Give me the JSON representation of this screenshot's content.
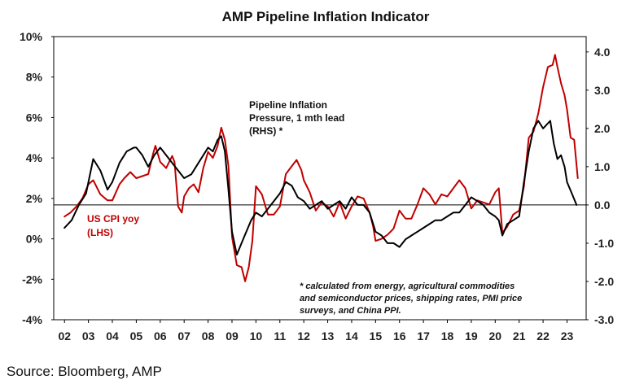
{
  "chart_data": {
    "type": "line",
    "title": "AMP Pipeline Inflation Indicator",
    "source": "Source: Bloomberg, AMP",
    "x_ticks": [
      "02",
      "03",
      "04",
      "05",
      "06",
      "07",
      "08",
      "09",
      "10",
      "11",
      "12",
      "13",
      "14",
      "15",
      "16",
      "17",
      "18",
      "19",
      "20",
      "21",
      "22",
      "23"
    ],
    "y_left": {
      "ticks": [
        "10%",
        "8%",
        "6%",
        "4%",
        "2%",
        "0%",
        "-2%",
        "-4%"
      ],
      "range": [
        -4,
        10
      ]
    },
    "y_right": {
      "ticks": [
        "4.0",
        "3.0",
        "2.0",
        "1.0",
        "0.0",
        "-1.0",
        "-2.0",
        "-3.0"
      ],
      "range": [
        -3,
        4.4
      ]
    },
    "annotations": {
      "pipeline_label": [
        "Pipeline Inflation",
        "Pressure, 1 mth lead",
        "(RHS) *"
      ],
      "cpi_label": [
        "US CPI yoy",
        "(LHS)"
      ],
      "footnote": [
        "* calculated from energy, agricultural commodities",
        "and semiconductor prices, shipping rates, PMI price",
        "surveys, and China PPI."
      ]
    },
    "series": [
      {
        "name": "US CPI yoy (LHS)",
        "axis": "left",
        "color": "#c00000",
        "x": [
          2002.0,
          2002.25,
          2002.5,
          2002.75,
          2003.0,
          2003.2,
          2003.5,
          2003.8,
          2004.0,
          2004.3,
          2004.5,
          2004.75,
          2005.0,
          2005.25,
          2005.5,
          2005.7,
          2005.8,
          2006.0,
          2006.25,
          2006.5,
          2006.6,
          2006.75,
          2006.9,
          2007.0,
          2007.2,
          2007.4,
          2007.6,
          2007.8,
          2008.0,
          2008.2,
          2008.4,
          2008.55,
          2008.7,
          2008.85,
          2009.0,
          2009.2,
          2009.4,
          2009.55,
          2009.7,
          2009.85,
          2010.0,
          2010.25,
          2010.5,
          2010.75,
          2011.0,
          2011.25,
          2011.5,
          2011.7,
          2011.9,
          2012.0,
          2012.25,
          2012.5,
          2012.75,
          2013.0,
          2013.25,
          2013.5,
          2013.75,
          2014.0,
          2014.25,
          2014.5,
          2014.75,
          2014.9,
          2015.0,
          2015.25,
          2015.5,
          2015.75,
          2016.0,
          2016.25,
          2016.5,
          2016.75,
          2017.0,
          2017.25,
          2017.5,
          2017.75,
          2018.0,
          2018.25,
          2018.5,
          2018.75,
          2019.0,
          2019.25,
          2019.5,
          2019.75,
          2020.0,
          2020.15,
          2020.3,
          2020.5,
          2020.75,
          2021.0,
          2021.2,
          2021.4,
          2021.6,
          2021.8,
          2022.0,
          2022.2,
          2022.4,
          2022.5,
          2022.6,
          2022.75,
          2022.9,
          2023.0,
          2023.15,
          2023.3,
          2023.45
        ],
        "values": [
          1.1,
          1.3,
          1.6,
          2.0,
          2.7,
          2.9,
          2.2,
          1.9,
          1.9,
          2.7,
          3.0,
          3.3,
          3.0,
          3.1,
          3.2,
          4.2,
          4.6,
          3.8,
          3.5,
          4.1,
          3.8,
          1.6,
          1.3,
          2.1,
          2.5,
          2.7,
          2.3,
          3.5,
          4.3,
          4.0,
          4.6,
          5.5,
          4.9,
          3.6,
          0.1,
          -1.3,
          -1.4,
          -2.1,
          -1.4,
          -0.1,
          2.6,
          2.2,
          1.2,
          1.2,
          1.6,
          3.2,
          3.6,
          3.9,
          3.4,
          2.9,
          2.3,
          1.4,
          1.8,
          1.6,
          1.1,
          1.8,
          1.0,
          1.6,
          2.1,
          2.0,
          1.3,
          0.6,
          -0.1,
          0.0,
          0.2,
          0.5,
          1.4,
          1.0,
          1.0,
          1.7,
          2.5,
          2.2,
          1.7,
          2.2,
          2.1,
          2.5,
          2.9,
          2.5,
          1.5,
          1.9,
          1.8,
          1.7,
          2.3,
          2.5,
          0.3,
          0.6,
          1.2,
          1.4,
          2.6,
          5.0,
          5.3,
          6.2,
          7.5,
          8.5,
          8.6,
          9.1,
          8.5,
          7.7,
          7.1,
          6.4,
          5.0,
          4.9,
          3.0
        ]
      },
      {
        "name": "Pipeline Inflation Pressure, 1 mth lead (RHS) *",
        "axis": "right",
        "color": "#000000",
        "x": [
          2002.0,
          2002.3,
          2002.6,
          2002.9,
          2003.2,
          2003.5,
          2003.8,
          2004.0,
          2004.3,
          2004.6,
          2004.9,
          2005.0,
          2005.25,
          2005.5,
          2005.75,
          2006.0,
          2006.25,
          2006.5,
          2006.75,
          2007.0,
          2007.3,
          2007.6,
          2007.8,
          2008.0,
          2008.2,
          2008.4,
          2008.55,
          2008.7,
          2008.85,
          2009.0,
          2009.2,
          2009.4,
          2009.6,
          2009.8,
          2010.0,
          2010.25,
          2010.5,
          2010.75,
          2011.0,
          2011.25,
          2011.5,
          2011.75,
          2012.0,
          2012.25,
          2012.5,
          2012.75,
          2013.0,
          2013.25,
          2013.5,
          2013.75,
          2014.0,
          2014.25,
          2014.5,
          2014.75,
          2015.0,
          2015.25,
          2015.5,
          2015.75,
          2016.0,
          2016.25,
          2016.5,
          2016.75,
          2017.0,
          2017.25,
          2017.5,
          2017.75,
          2018.0,
          2018.25,
          2018.5,
          2018.75,
          2019.0,
          2019.25,
          2019.5,
          2019.75,
          2020.0,
          2020.15,
          2020.3,
          2020.5,
          2020.75,
          2021.0,
          2021.2,
          2021.4,
          2021.6,
          2021.8,
          2022.0,
          2022.15,
          2022.3,
          2022.45,
          2022.6,
          2022.75,
          2022.9,
          2023.0,
          2023.2,
          2023.4
        ],
        "values": [
          -0.6,
          -0.4,
          0.0,
          0.3,
          1.2,
          0.9,
          0.4,
          0.6,
          1.1,
          1.4,
          1.5,
          1.5,
          1.3,
          1.0,
          1.3,
          1.5,
          1.3,
          1.1,
          0.9,
          0.7,
          0.8,
          1.1,
          1.3,
          1.5,
          1.4,
          1.7,
          1.8,
          1.4,
          0.4,
          -0.7,
          -1.3,
          -1.0,
          -0.7,
          -0.4,
          -0.2,
          -0.3,
          -0.1,
          0.1,
          0.3,
          0.6,
          0.5,
          0.2,
          0.1,
          -0.1,
          0.0,
          0.1,
          -0.1,
          0.0,
          0.1,
          -0.1,
          0.2,
          0.0,
          0.0,
          -0.2,
          -0.7,
          -0.8,
          -1.0,
          -1.0,
          -1.1,
          -0.9,
          -0.8,
          -0.7,
          -0.6,
          -0.5,
          -0.4,
          -0.4,
          -0.3,
          -0.2,
          -0.2,
          0.0,
          0.2,
          0.1,
          0.0,
          -0.2,
          -0.3,
          -0.4,
          -0.8,
          -0.5,
          -0.4,
          -0.3,
          0.6,
          1.4,
          2.0,
          2.2,
          2.0,
          2.1,
          2.2,
          1.6,
          1.2,
          1.3,
          1.0,
          0.6,
          0.3,
          0.0
        ]
      }
    ]
  }
}
